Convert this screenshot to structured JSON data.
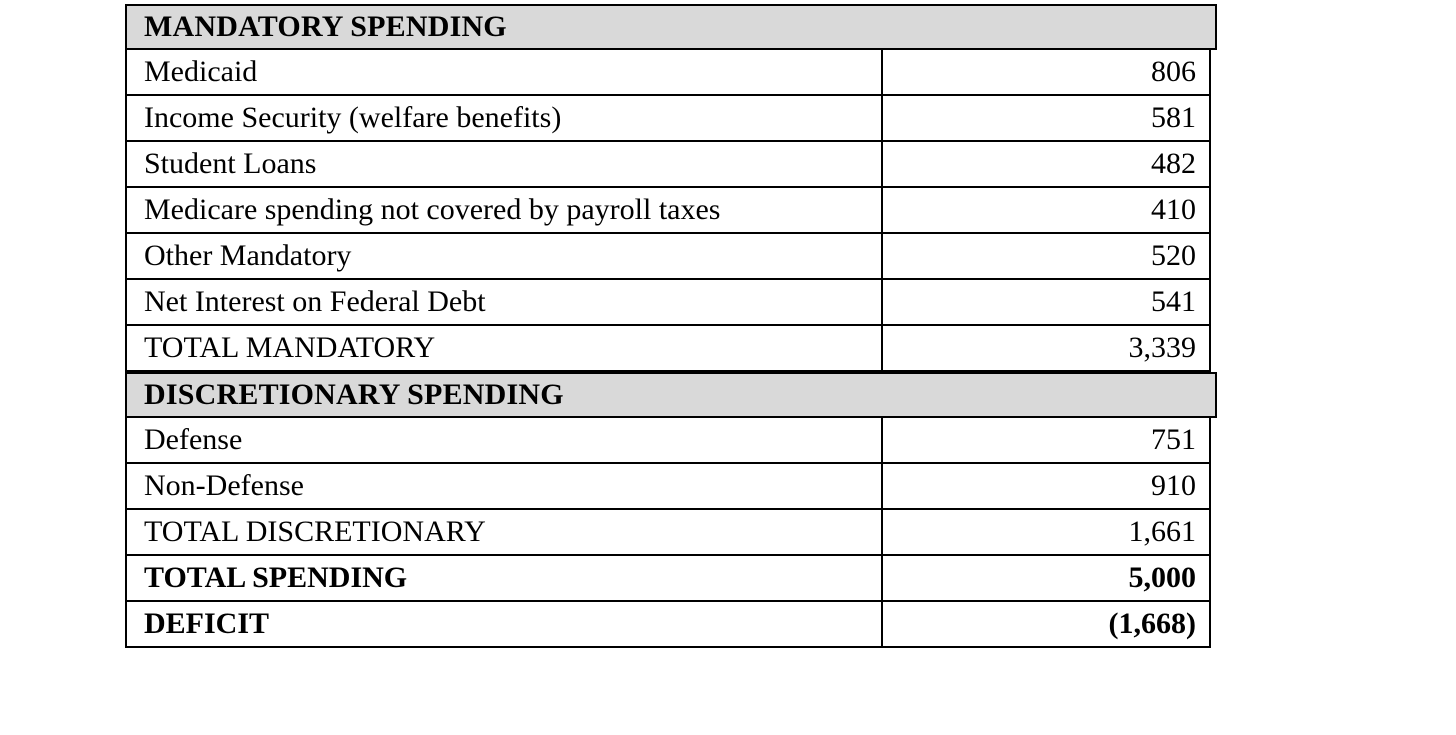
{
  "budget_table": {
    "sections": [
      {
        "header": "MANDATORY SPENDING",
        "rows": [
          {
            "label": "Medicaid",
            "value": "806"
          },
          {
            "label": "Income Security (welfare benefits)",
            "value": "581"
          },
          {
            "label": "Student Loans",
            "value": "482"
          },
          {
            "label": "Medicare spending not covered by payroll taxes",
            "value": "410"
          },
          {
            "label": "Other Mandatory",
            "value": "520"
          },
          {
            "label": "Net Interest on Federal Debt",
            "value": "541"
          },
          {
            "label": "TOTAL MANDATORY",
            "value": "3,339"
          }
        ]
      },
      {
        "header": "DISCRETIONARY SPENDING",
        "rows": [
          {
            "label": "Defense",
            "value": "751"
          },
          {
            "label": "Non-Defense",
            "value": "910"
          },
          {
            "label": "TOTAL DISCRETIONARY",
            "value": "1,661"
          },
          {
            "label": "TOTAL SPENDING",
            "value": "5,000",
            "emphasis": "bold"
          },
          {
            "label": "DEFICIT",
            "value": "(1,668)",
            "emphasis": "bold"
          }
        ]
      }
    ],
    "colors": {
      "section_header_bg": "#d9d9d9",
      "border": "#000000",
      "text": "#000000",
      "page_bg": "#ffffff"
    }
  }
}
